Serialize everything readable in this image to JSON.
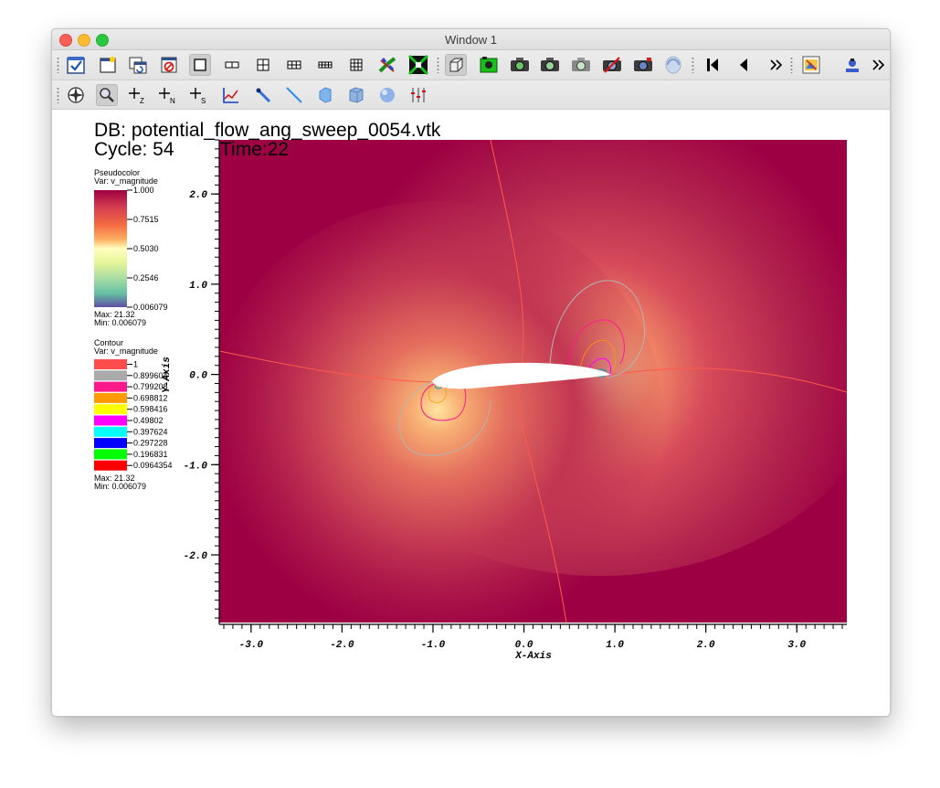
{
  "window": {
    "title": "Window 1"
  },
  "toolbar1": [
    {
      "icon": "clear-plots-checkmark-icon"
    },
    {
      "icon": "new-window-icon"
    },
    {
      "icon": "clone-window-icon"
    },
    {
      "icon": "delete-window-icon"
    },
    {
      "icon": "layout-1x1-icon"
    },
    {
      "icon": "layout-1x2-icon"
    },
    {
      "icon": "layout-2x2-icon"
    },
    {
      "icon": "layout-2x3-icon"
    },
    {
      "icon": "layout-2x4-icon"
    },
    {
      "icon": "layout-3x3-icon"
    },
    {
      "icon": "lock-view-icon"
    },
    {
      "icon": "lock-time-icon"
    },
    {
      "icon": "3d-view-icon"
    },
    {
      "icon": "green-camera-icon"
    },
    {
      "icon": "camera-icon"
    },
    {
      "icon": "camera-icon-2"
    },
    {
      "icon": "camera-icon-3"
    },
    {
      "icon": "camera-delete-icon"
    },
    {
      "icon": "camera-icon-4"
    },
    {
      "icon": "spin-icon"
    },
    {
      "icon": "first-frame-icon"
    },
    {
      "icon": "previous-frame-icon"
    },
    {
      "icon": "more-icon"
    },
    {
      "icon": "invert-background-icon"
    },
    {
      "icon": "engine-icon"
    },
    {
      "icon": "more-icon-2"
    }
  ],
  "toolbar2": [
    {
      "icon": "navigate-compass-icon"
    },
    {
      "icon": "zoom-icon"
    },
    {
      "icon": "zone-pick-icon",
      "label": "Z"
    },
    {
      "icon": "node-pick-icon",
      "label": "N"
    },
    {
      "icon": "spreadsheet-pick-icon",
      "label": "S"
    },
    {
      "icon": "curve-icon"
    },
    {
      "icon": "point-tool-icon"
    },
    {
      "icon": "line-tool-icon"
    },
    {
      "icon": "plane-tool-icon"
    },
    {
      "icon": "box-tool-icon"
    },
    {
      "icon": "sphere-tool-icon"
    },
    {
      "icon": "axis-restriction-icon"
    }
  ],
  "annotations": {
    "db": "DB: potential_flow_ang_sweep_0054.vtk",
    "cycle": "Cycle: 54",
    "time": "Time:22"
  },
  "legend_pseudocolor": {
    "title": "Pseudocolor",
    "var": "Var: v_magnitude",
    "ticks": [
      "1.000",
      "0.7515",
      "0.5030",
      "0.2546",
      "0.006079"
    ],
    "max": "Max:  21.32",
    "min": "Min:  0.006079"
  },
  "legend_contour": {
    "title": "Contour",
    "var": "Var: v_magnitude",
    "levels": [
      {
        "label": "1",
        "color": "#ff4d4d"
      },
      {
        "label": "0.899604",
        "color": "#aaaaaa"
      },
      {
        "label": "0.799208",
        "color": "#ff1a8c"
      },
      {
        "label": "0.698812",
        "color": "#ff9900"
      },
      {
        "label": "0.598416",
        "color": "#ffff00"
      },
      {
        "label": "0.49802",
        "color": "#ff00ff"
      },
      {
        "label": "0.397624",
        "color": "#00ffff"
      },
      {
        "label": "0.297228",
        "color": "#0000ff"
      },
      {
        "label": "0.196831",
        "color": "#00ff00"
      },
      {
        "label": "0.0964354",
        "color": "#ff0000"
      }
    ],
    "max": "Max:  21.32",
    "min": "Min:  0.006079"
  },
  "chart_data": {
    "type": "heatmap",
    "title": "DB: potential_flow_ang_sweep_0054.vtk",
    "variable": "v_magnitude",
    "xlabel": "X-Axis",
    "ylabel": "Y-Axis",
    "xlim": [
      -3.35,
      3.55
    ],
    "ylim": [
      -2.75,
      2.6
    ],
    "xticks": [
      -3.0,
      -2.0,
      -1.0,
      0.0,
      1.0,
      2.0,
      3.0
    ],
    "yticks": [
      -2.0,
      -1.0,
      0.0,
      1.0,
      2.0
    ],
    "xtick_labels": [
      "-3.0",
      "-2.0",
      "-1.0",
      "0.0",
      "1.0",
      "2.0",
      "3.0"
    ],
    "ytick_labels": [
      "-2.0",
      "-1.0",
      "0.0",
      "1.0",
      "2.0"
    ],
    "colorbar_range": [
      0.006079,
      1.0
    ],
    "colormap": [
      "#5e4fa2",
      "#66c2a5",
      "#ffffbf",
      "#f46d43",
      "#9e0142"
    ]
  }
}
